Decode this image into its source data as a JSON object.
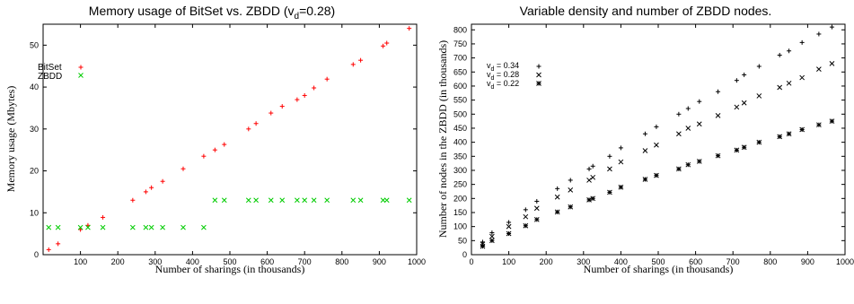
{
  "chart_data": [
    {
      "type": "scatter",
      "title": "Memory usage of BitSet vs. ZBDD (v",
      "title_sub": "d",
      "title_tail": "=0.28)",
      "xlabel": "Number of sharings (in thousands)",
      "ylabel": "Memory usage (Mbytes)",
      "xlim": [
        0,
        1000
      ],
      "ylim": [
        0,
        55
      ],
      "xticks": [
        100,
        200,
        300,
        400,
        500,
        600,
        700,
        800,
        900,
        1000
      ],
      "yticks": [
        0,
        10,
        20,
        30,
        40,
        50
      ],
      "legend_position": "top-left",
      "series": [
        {
          "name": "BitSet",
          "marker": "plus",
          "color": "#ff0000",
          "x": [
            15,
            40,
            100,
            120,
            160,
            240,
            275,
            290,
            320,
            375,
            430,
            460,
            485,
            550,
            570,
            610,
            640,
            680,
            700,
            725,
            760,
            830,
            850,
            910,
            920,
            980
          ],
          "y": [
            1.2,
            2.6,
            6.0,
            7.0,
            8.9,
            13.0,
            15.0,
            16.0,
            17.5,
            20.5,
            23.5,
            25.0,
            26.3,
            30.0,
            31.3,
            33.8,
            35.4,
            37.0,
            38.0,
            39.8,
            41.9,
            45.4,
            46.4,
            49.8,
            50.5,
            54.0
          ]
        },
        {
          "name": "ZBDD",
          "marker": "cross",
          "color": "#00cc00",
          "x": [
            15,
            40,
            100,
            120,
            160,
            240,
            275,
            290,
            320,
            375,
            430,
            460,
            485,
            550,
            570,
            610,
            640,
            680,
            700,
            725,
            760,
            830,
            850,
            910,
            920,
            980
          ],
          "y": [
            6.5,
            6.5,
            6.5,
            6.5,
            6.5,
            6.5,
            6.5,
            6.5,
            6.5,
            6.5,
            6.5,
            13,
            13,
            13,
            13,
            13,
            13,
            13,
            13,
            13,
            13,
            13,
            13,
            13,
            13,
            13
          ]
        }
      ]
    },
    {
      "type": "scatter",
      "title": "Variable density and number of ZBDD nodes.",
      "xlabel": "Number of sharings (in thousands)",
      "ylabel": "Number of nodes in the ZBDD (in thousands)",
      "xlim": [
        0,
        1000
      ],
      "ylim": [
        0,
        820
      ],
      "xticks": [
        0,
        100,
        200,
        300,
        400,
        500,
        600,
        700,
        800,
        900,
        1000
      ],
      "yticks": [
        0,
        50,
        100,
        150,
        200,
        250,
        300,
        350,
        400,
        450,
        500,
        550,
        600,
        650,
        700,
        750,
        800
      ],
      "legend_position": "top-left",
      "series": [
        {
          "name_prefix": "v",
          "name_sub": "d",
          "name_tail": " = 0.34",
          "marker": "plus",
          "color": "#000000",
          "x": [
            30,
            55,
            100,
            145,
            175,
            230,
            265,
            315,
            325,
            370,
            400,
            465,
            495,
            555,
            580,
            610,
            660,
            710,
            730,
            770,
            825,
            850,
            885,
            930,
            965
          ],
          "y": [
            45,
            78,
            115,
            160,
            190,
            235,
            265,
            305,
            315,
            350,
            380,
            430,
            455,
            500,
            520,
            545,
            580,
            620,
            640,
            670,
            710,
            725,
            755,
            785,
            810
          ]
        },
        {
          "name_prefix": "v",
          "name_sub": "d",
          "name_tail": " = 0.28",
          "marker": "cross",
          "color": "#000000",
          "x": [
            30,
            55,
            100,
            145,
            175,
            230,
            265,
            315,
            325,
            370,
            400,
            465,
            495,
            555,
            580,
            610,
            660,
            710,
            730,
            770,
            825,
            850,
            885,
            930,
            965
          ],
          "y": [
            38,
            65,
            100,
            135,
            165,
            205,
            230,
            265,
            275,
            305,
            330,
            370,
            390,
            430,
            450,
            465,
            495,
            525,
            540,
            565,
            595,
            610,
            630,
            660,
            680
          ]
        },
        {
          "name_prefix": "v",
          "name_sub": "d",
          "name_tail": " = 0.22",
          "marker": "star",
          "color": "#000000",
          "x": [
            30,
            55,
            100,
            145,
            175,
            230,
            265,
            315,
            325,
            370,
            400,
            465,
            495,
            555,
            580,
            610,
            660,
            710,
            730,
            770,
            825,
            850,
            885,
            930,
            965
          ],
          "y": [
            30,
            50,
            75,
            103,
            125,
            152,
            170,
            195,
            200,
            222,
            240,
            268,
            282,
            305,
            320,
            332,
            352,
            372,
            382,
            400,
            420,
            430,
            445,
            462,
            475
          ]
        }
      ]
    }
  ]
}
